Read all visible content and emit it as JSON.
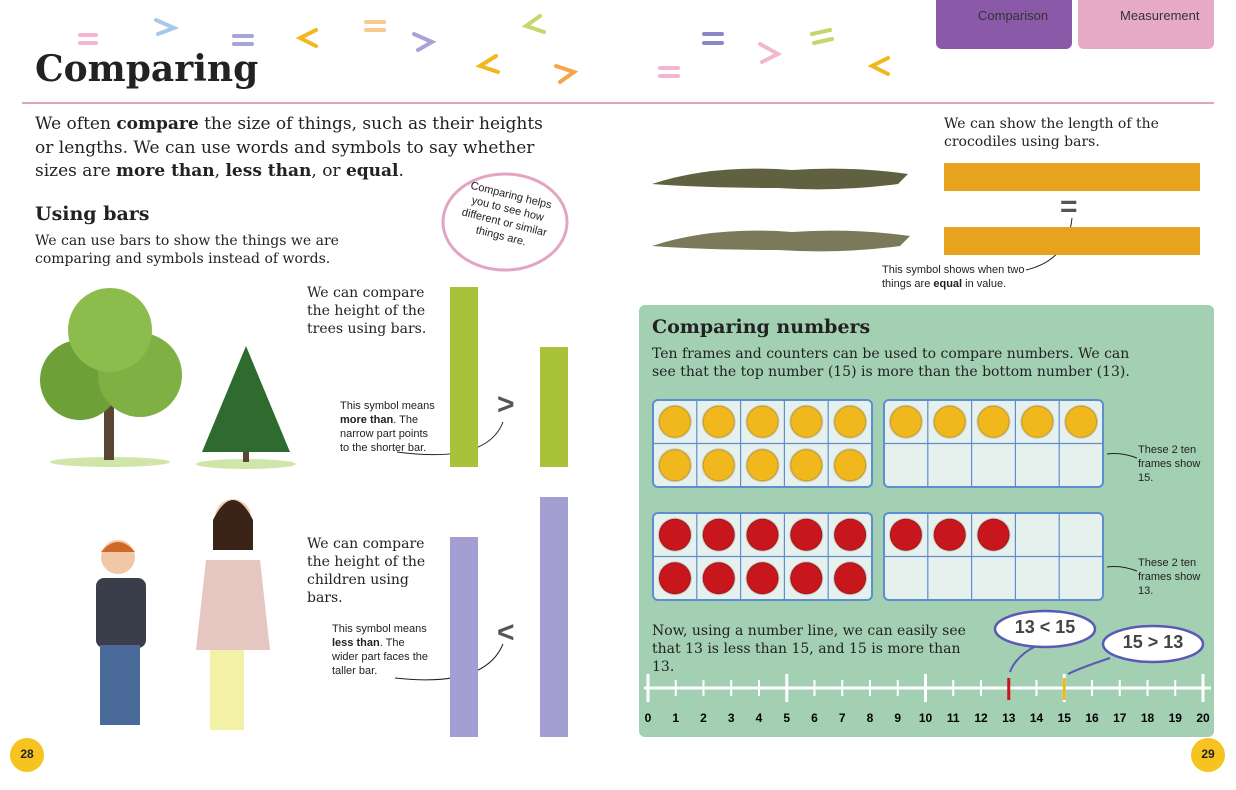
{
  "tabs": [
    "Comparison",
    "Measurement"
  ],
  "title": "Comparing",
  "intro": [
    "We often ",
    "compare",
    " the size of things, such as their heights or lengths. We can use words and symbols to say whether sizes are ",
    "more than",
    ", ",
    "less than",
    ", or ",
    "equal",
    "."
  ],
  "bubble": "Comparing helps you to see how different or similar things are.",
  "using_bars": {
    "heading": "Using bars",
    "text": "We can use bars to show the things we are comparing and symbols instead of words."
  },
  "trees": {
    "text": "We can compare the height of the trees using bars.",
    "symbol": ">",
    "note": [
      "This symbol means ",
      "more than",
      ". The narrow part points to the shorter bar."
    ]
  },
  "children": {
    "text": "We can compare the height of the children using bars.",
    "symbol": "<",
    "note": [
      "This symbol means ",
      "less than",
      ". The wider part faces the taller bar."
    ]
  },
  "crocodiles": {
    "text": "We can show the length of the crocodiles using bars.",
    "symbol": "=",
    "note": [
      "This symbol shows when two things are ",
      "equal",
      " in value."
    ]
  },
  "numbers": {
    "heading": "Comparing numbers",
    "text": "Ten frames and counters can be used to compare numbers. We can see that the top number (15) is more than the bottom number (13).",
    "ten_frames": [
      {
        "counters": 15,
        "color": "#f0b81c",
        "note": "These 2 ten frames show 15."
      },
      {
        "counters": 13,
        "color": "#c8161d",
        "note": "These 2 ten frames show 13."
      }
    ],
    "line_text": "Now, using a number line, we can easily see that 13 is less than 15, and 15 is more than 13.",
    "bubbles": [
      "13 < 15",
      "15 > 13"
    ],
    "number_line": {
      "ticks": [
        0,
        1,
        2,
        3,
        4,
        5,
        6,
        7,
        8,
        9,
        10,
        11,
        12,
        13,
        14,
        15,
        16,
        17,
        18,
        19,
        20
      ],
      "highlights": [
        {
          "value": 13,
          "color": "#c8161d"
        },
        {
          "value": 15,
          "color": "#f0b81c"
        }
      ]
    }
  },
  "page_numbers": [
    "28",
    "29"
  ]
}
